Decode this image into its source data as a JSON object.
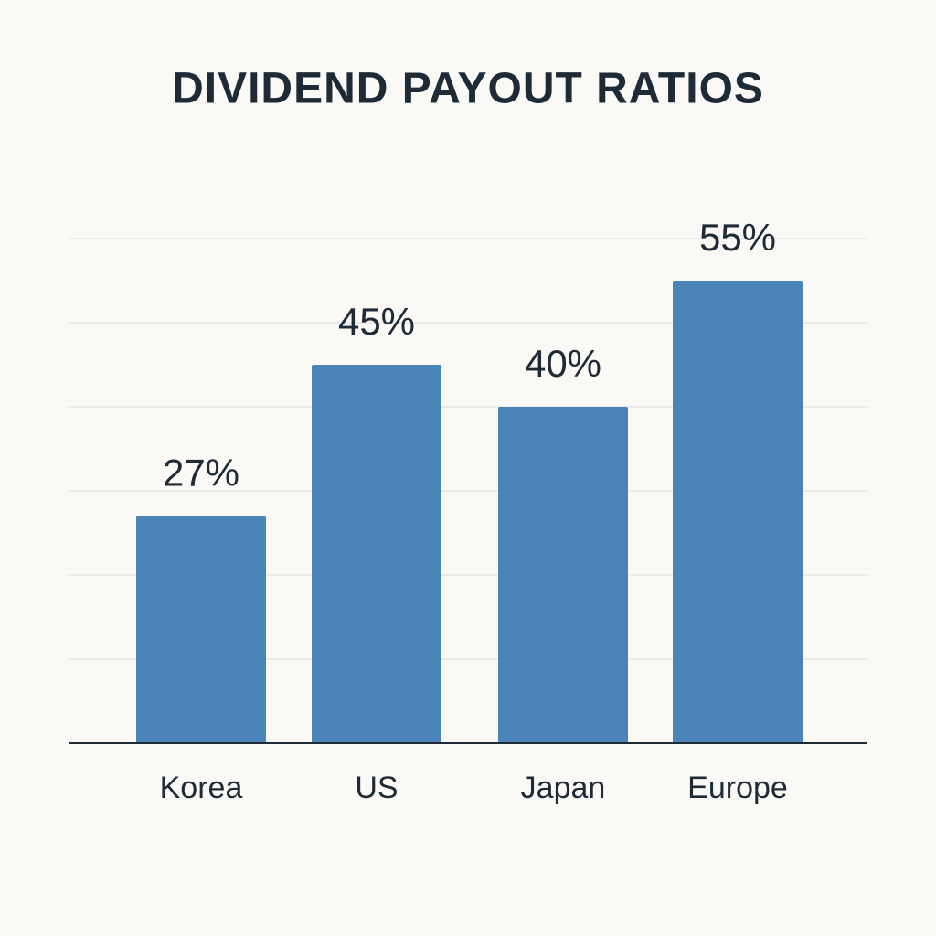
{
  "chart_data": {
    "type": "bar",
    "title": "DIVIDEND PAYOUT RATIOS",
    "categories": [
      "Korea",
      "US",
      "Japan",
      "Europe"
    ],
    "values": [
      27,
      45,
      40,
      55
    ],
    "value_labels": [
      "27%",
      "45%",
      "40%",
      "55%"
    ],
    "color": "#4a84b8",
    "ylim": [
      0,
      60
    ],
    "yticks": [
      0,
      10,
      20,
      30,
      40,
      50,
      60
    ],
    "grid": true
  }
}
